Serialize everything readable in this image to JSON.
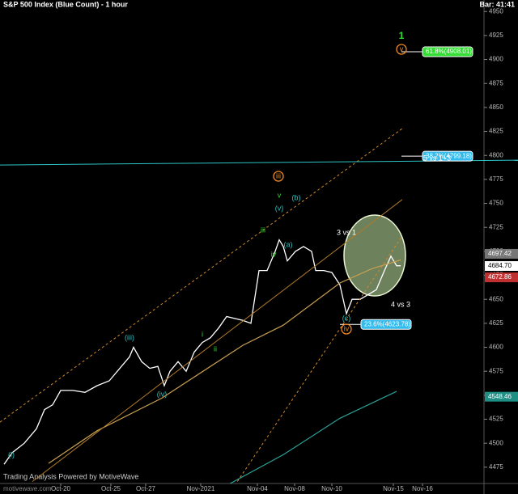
{
  "chart_data": {
    "type": "line",
    "title": "S&P 500 Index (Blue Count) - 1 hour",
    "bar_info": "Bar: 41:41",
    "footer": "Trading Analysis Powered by MotiveWave",
    "watermark": "motivewave.com",
    "xlim": [
      0,
      128
    ],
    "xticks": [
      {
        "value": 15,
        "label": "Oct-20"
      },
      {
        "value": 27.4,
        "label": "Oct-25"
      },
      {
        "value": 36,
        "label": "Oct-27"
      },
      {
        "value": 49.6,
        "label": "Nov-2021"
      },
      {
        "value": 63.6,
        "label": "Nov-04"
      },
      {
        "value": 72.8,
        "label": "Nov-08"
      },
      {
        "value": 82,
        "label": "Nov-10"
      },
      {
        "value": 97.2,
        "label": "Nov-15"
      },
      {
        "value": 104.4,
        "label": "Nov-16"
      }
    ],
    "ylim": [
      4458,
      4962
    ],
    "yticks": [
      4475,
      4500,
      4525,
      4550,
      4575,
      4600,
      4625,
      4650,
      4675,
      4700,
      4725,
      4750,
      4775,
      4800,
      4825,
      4850,
      4875,
      4900,
      4925,
      4950
    ],
    "series": [
      {
        "name": "Price",
        "color": "#ffffff",
        "width": 1.3,
        "x": [
          1,
          3,
          6,
          9,
          11,
          13,
          15,
          18,
          21,
          24,
          27,
          30,
          32,
          33,
          35,
          37,
          39,
          40.6,
          42,
          44,
          46,
          48,
          50,
          52,
          54,
          56,
          58,
          60,
          62,
          64,
          66,
          68,
          69,
          70,
          71,
          73,
          75,
          77,
          78,
          80,
          82,
          84,
          85.6,
          87,
          89,
          91,
          93,
          95,
          96.6,
          98,
          99
        ],
        "values": [
          4478,
          4490,
          4500,
          4515,
          4535,
          4540,
          4555,
          4555,
          4553,
          4560,
          4565,
          4580,
          4590,
          4600,
          4585,
          4578,
          4580,
          4560,
          4575,
          4585,
          4575,
          4595,
          4605,
          4610,
          4620,
          4632,
          4630,
          4628,
          4625,
          4680,
          4680,
          4700,
          4712,
          4705,
          4690,
          4700,
          4705,
          4700,
          4680,
          4680,
          4678,
          4665,
          4635,
          4650,
          4650,
          4655,
          4660,
          4680,
          4695,
          4685,
          4685
        ]
      },
      {
        "name": "MA slow",
        "color": "#c8a050",
        "width": 1.2,
        "x": [
          12,
          24,
          40,
          60,
          70,
          84,
          92,
          99
        ],
        "values": [
          4479,
          4513,
          4547,
          4602,
          4623,
          4667,
          4682,
          4691
        ]
      },
      {
        "name": "MA long",
        "color": "#2aa198",
        "width": 1.2,
        "x": [
          56,
          70,
          84,
          98
        ],
        "values": [
          4456,
          4488,
          4526,
          4554
        ]
      },
      {
        "name": "Channel upper",
        "color": "#d08a2a",
        "dash": true,
        "width": 1,
        "x": [
          0,
          99.4
        ],
        "values": [
          4522,
          4828
        ]
      },
      {
        "name": "Channel middle",
        "color": "#b07a2a",
        "width": 1,
        "x": [
          8,
          99.4
        ],
        "values": [
          4460,
          4754
        ]
      },
      {
        "name": "Channel lower",
        "color": "#d08a2a",
        "dash": true,
        "width": 1,
        "x": [
          58,
          99.4
        ],
        "values": [
          4456,
          4716
        ]
      },
      {
        "name": "Level",
        "color": "#2ec4c4",
        "width": 1,
        "x": [
          0,
          128
        ],
        "values": [
          4790,
          4795
        ]
      }
    ],
    "price_labels": [
      {
        "value": 4697.42,
        "color": "#777777",
        "text_color": "#ffffff"
      },
      {
        "value": 4684.7,
        "label": "4684.70",
        "color": "#ffffff",
        "text_color": "#000000"
      },
      {
        "value": 4672.86,
        "color": "#c03030",
        "text_color": "#ffffff"
      },
      {
        "value": 4548.46,
        "color": "#1f8f86",
        "text_color": "#ffffff"
      }
    ],
    "fib_levels": [
      {
        "text": "61.8%(4908.01)",
        "value": 4908.01,
        "color": "#33dd33"
      },
      {
        "text": "38.2%(4799.18)",
        "value": 4799.18,
        "color": "#33bbee"
      },
      {
        "text": "23.6%(4623.78)",
        "value": 4623.78,
        "color": "#33bbee"
      }
    ],
    "annotations": [
      {
        "text": "(i)",
        "color": "#2ec4c4"
      },
      {
        "text": "(iii)",
        "color": "#2ec4c4"
      },
      {
        "text": "(iv)",
        "color": "#2ec4c4"
      },
      {
        "text": "(v)",
        "color": "#2ec4c4"
      },
      {
        "text": "(a)",
        "color": "#2ec4c4"
      },
      {
        "text": "(b)",
        "color": "#2ec4c4"
      },
      {
        "text": "(c)",
        "color": "#2ec4c4"
      },
      {
        "text": "iii",
        "color": "#33dd33"
      },
      {
        "text": "iv",
        "color": "#33dd33"
      },
      {
        "text": "v",
        "color": "#33dd33"
      },
      {
        "text": "i",
        "color": "#33dd33"
      },
      {
        "text": "ii",
        "color": "#33dd33"
      },
      {
        "text": "iii",
        "color": "#f08a20",
        "circled": true
      },
      {
        "text": "iv",
        "color": "#f08a20",
        "circled": true
      },
      {
        "text": "v",
        "color": "#f08a20",
        "circled": true
      },
      {
        "text": "1",
        "color": "#33dd33"
      },
      {
        "text": "3 vs 1",
        "color": "#ffffff"
      },
      {
        "text": "4 vs 3",
        "color": "#ffffff"
      },
      {
        "text": "5 vs 1+3",
        "color": "#ffffff"
      }
    ]
  }
}
